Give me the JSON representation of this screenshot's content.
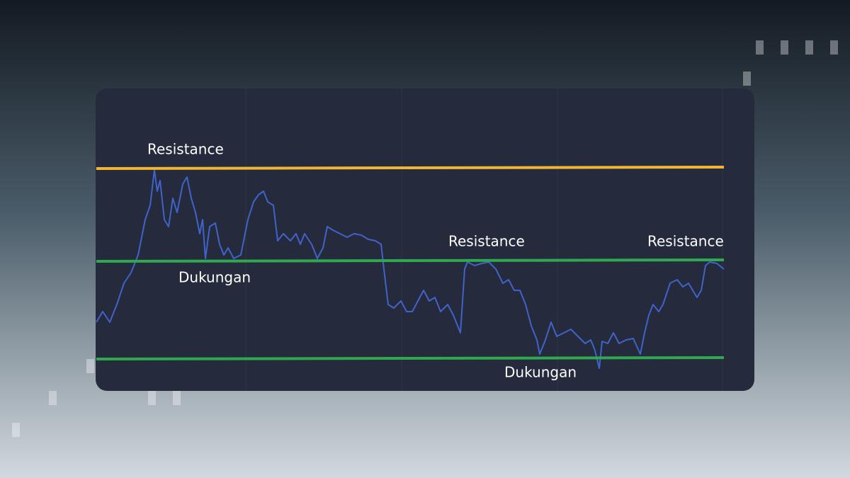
{
  "annotations": {
    "resistance_left": "Resistance",
    "support_left": "Dukungan",
    "resistance_middle": "Resistance",
    "resistance_right": "Resistance",
    "support_bottom": "Dukungan"
  }
}
